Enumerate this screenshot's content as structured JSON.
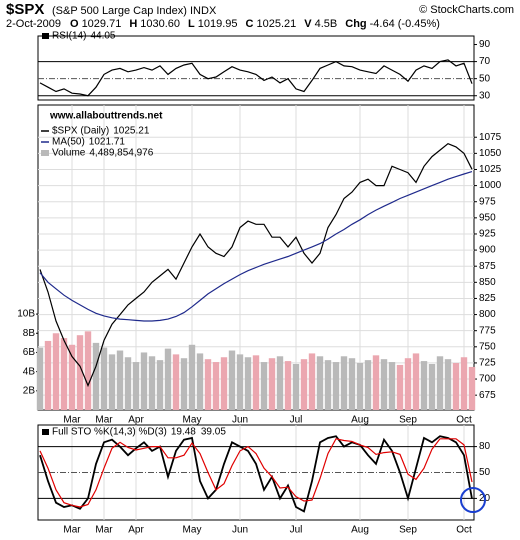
{
  "header": {
    "symbol": "$SPX",
    "name": "(S&P 500 Large Cap Index) INDX",
    "source": "© StockCharts.com",
    "date": "2-Oct-2009",
    "fields": [
      {
        "label": "O",
        "value": "1029.71"
      },
      {
        "label": "H",
        "value": "1030.60"
      },
      {
        "label": "L",
        "value": "1019.95"
      },
      {
        "label": "C",
        "value": "1025.21"
      },
      {
        "label": "V",
        "value": "4.5B"
      },
      {
        "label": "Chg",
        "value": "-4.64 (-0.45%)"
      }
    ]
  },
  "chart_data": [
    {
      "type": "line",
      "ylim": [
        25,
        100
      ],
      "yticks": [
        30,
        50,
        70,
        90
      ],
      "levels": [
        30,
        70
      ],
      "dashed_levels": [
        50
      ],
      "series": [
        {
          "name": "RSI(14)",
          "color": "#000000",
          "values": [
            45,
            40,
            35,
            38,
            33,
            32,
            30,
            40,
            55,
            60,
            62,
            58,
            60,
            63,
            60,
            65,
            55,
            62,
            66,
            68,
            55,
            50,
            52,
            58,
            64,
            60,
            58,
            55,
            48,
            52,
            45,
            50,
            38,
            35,
            48,
            62,
            66,
            70,
            65,
            64,
            60,
            58,
            56,
            65,
            60,
            55,
            47,
            60,
            65,
            62,
            70,
            72,
            65,
            68,
            44.05
          ]
        }
      ]
    },
    {
      "type": "line",
      "annotation": "www.allabouttrends.net",
      "ylim": [
        652,
        1125
      ],
      "yticks": [
        675,
        700,
        725,
        750,
        775,
        800,
        825,
        850,
        875,
        900,
        925,
        950,
        975,
        1000,
        1025,
        1050,
        1075
      ],
      "y2lim": [
        0,
        31800000000
      ],
      "y2ticks": [
        {
          "value": 2000000000,
          "label": "2B"
        },
        {
          "value": 4000000000,
          "label": "4B"
        },
        {
          "value": 6000000000,
          "label": "6B"
        },
        {
          "value": 8000000000,
          "label": "8B"
        },
        {
          "value": 10000000000,
          "label": "10B"
        }
      ],
      "grid": true,
      "categories": [
        null,
        null,
        null,
        null,
        "Mar",
        null,
        null,
        null,
        "Mar",
        null,
        null,
        null,
        "Apr",
        null,
        null,
        null,
        null,
        null,
        null,
        "May",
        null,
        null,
        null,
        null,
        null,
        "Jun",
        null,
        null,
        null,
        null,
        null,
        null,
        "Jul",
        null,
        null,
        null,
        null,
        null,
        null,
        null,
        "Aug",
        null,
        null,
        null,
        null,
        null,
        "Sep",
        null,
        null,
        null,
        null,
        null,
        null,
        "Oct",
        null
      ],
      "series": [
        {
          "name": "$SPX (Daily)",
          "color": "#000000",
          "values": [
            870,
            835,
            790,
            760,
            735,
            720,
            690,
            720,
            760,
            785,
            800,
            815,
            825,
            835,
            850,
            860,
            870,
            855,
            880,
            905,
            925,
            905,
            895,
            890,
            905,
            935,
            945,
            940,
            940,
            920,
            920,
            905,
            920,
            895,
            880,
            895,
            935,
            955,
            980,
            990,
            1005,
            1010,
            1000,
            1000,
            1030,
            1025,
            1020,
            1005,
            1030,
            1045,
            1055,
            1065,
            1060,
            1050,
            1025.21
          ]
        },
        {
          "name": "MA(50)",
          "color": "#1f2a8c",
          "values": [
            865,
            850,
            840,
            830,
            822,
            815,
            808,
            802,
            798,
            795,
            793,
            792,
            791,
            790,
            790,
            791,
            793,
            797,
            803,
            812,
            822,
            832,
            840,
            848,
            855,
            862,
            868,
            873,
            878,
            882,
            886,
            890,
            895,
            900,
            905,
            910,
            917,
            925,
            932,
            940,
            947,
            955,
            962,
            968,
            974,
            980,
            985,
            990,
            995,
            1000,
            1005,
            1010,
            1014,
            1018,
            1021.71
          ]
        },
        {
          "name": "Volume",
          "type": "bar",
          "axis": "y2",
          "colors": {
            "up": "#b9b9b9",
            "down": "#eba7b0"
          },
          "values": [
            6500000000,
            7200000000,
            8000000000,
            7500000000,
            6800000000,
            7800000000,
            8200000000,
            7000000000,
            6500000000,
            5800000000,
            6200000000,
            5500000000,
            5000000000,
            6000000000,
            5600000000,
            5200000000,
            6400000000,
            5800000000,
            5400000000,
            6800000000,
            5900000000,
            5300000000,
            5000000000,
            5500000000,
            6200000000,
            5800000000,
            5500000000,
            5700000000,
            5000000000,
            5400000000,
            5600000000,
            5100000000,
            4800000000,
            5300000000,
            5900000000,
            5600000000,
            5200000000,
            5000000000,
            5600000000,
            5400000000,
            4900000000,
            5200000000,
            5700000000,
            5300000000,
            5000000000,
            4700000000,
            5400000000,
            5900000000,
            5100000000,
            4800000000,
            5600000000,
            5300000000,
            4900000000,
            5500000000,
            4489854976
          ],
          "value_labels": [
            null,
            null,
            null,
            null,
            null,
            null,
            null,
            null,
            null,
            null,
            null,
            null,
            null,
            null,
            null,
            null,
            null,
            null,
            null,
            null,
            null,
            null,
            null,
            null,
            null,
            null,
            null,
            null,
            null,
            null,
            null,
            null,
            null,
            null,
            null,
            null,
            null,
            null,
            null,
            null,
            null,
            null,
            null,
            null,
            null,
            null,
            null,
            null,
            null,
            null,
            null,
            null,
            null,
            null,
            "4,489,854,976"
          ]
        }
      ]
    },
    {
      "type": "line",
      "title": "Full STO %K(14,3) %D(3)",
      "ylim": [
        -5,
        105
      ],
      "yticks": [
        20,
        50,
        80
      ],
      "levels": [
        20,
        80
      ],
      "dashed_levels": [
        50
      ],
      "categories": [
        null,
        null,
        null,
        null,
        "Mar",
        null,
        null,
        null,
        "Mar",
        null,
        null,
        null,
        "Apr",
        null,
        null,
        null,
        null,
        null,
        null,
        "May",
        null,
        null,
        null,
        null,
        null,
        "Jun",
        null,
        null,
        null,
        null,
        null,
        null,
        "Jul",
        null,
        null,
        null,
        null,
        null,
        null,
        null,
        "Aug",
        null,
        null,
        null,
        null,
        null,
        "Sep",
        null,
        null,
        null,
        null,
        null,
        null,
        "Oct",
        null
      ],
      "series": [
        {
          "name": "%K",
          "color": "#000000",
          "values": [
            70,
            40,
            15,
            10,
            12,
            8,
            20,
            60,
            85,
            88,
            80,
            70,
            78,
            85,
            75,
            80,
            45,
            75,
            88,
            90,
            40,
            20,
            30,
            60,
            85,
            80,
            75,
            60,
            30,
            45,
            20,
            35,
            10,
            5,
            40,
            85,
            90,
            92,
            80,
            85,
            82,
            70,
            60,
            88,
            75,
            50,
            20,
            55,
            90,
            85,
            92,
            90,
            85,
            70,
            19.48
          ]
        },
        {
          "name": "%D",
          "color": "#e00000",
          "values": [
            75,
            55,
            30,
            15,
            12,
            10,
            13,
            30,
            55,
            78,
            85,
            79,
            76,
            78,
            80,
            80,
            67,
            67,
            70,
            84,
            72,
            50,
            30,
            37,
            58,
            75,
            80,
            72,
            55,
            45,
            32,
            33,
            22,
            17,
            18,
            43,
            72,
            89,
            87,
            86,
            82,
            79,
            71,
            73,
            74,
            71,
            48,
            42,
            55,
            77,
            89,
            89,
            89,
            82,
            39.05
          ]
        }
      ]
    }
  ]
}
